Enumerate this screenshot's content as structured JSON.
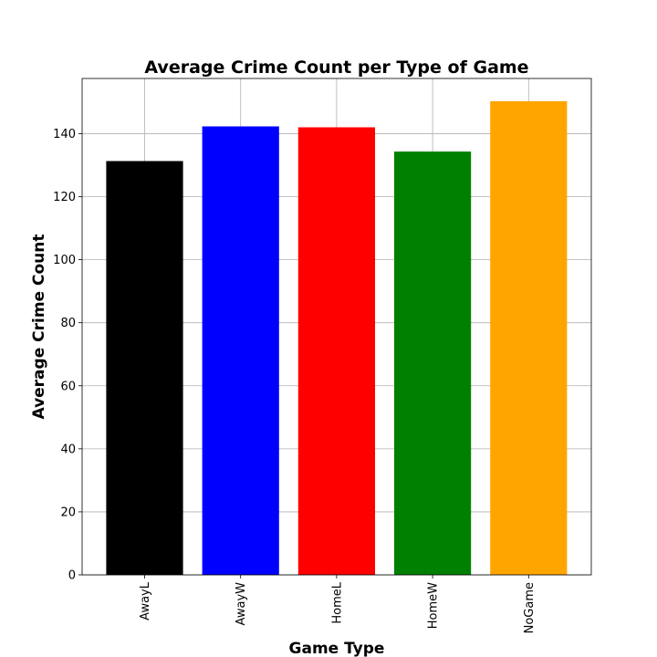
{
  "chart_data": {
    "type": "bar",
    "title": "Average Crime Count per Type of Game",
    "xlabel": "Game Type",
    "ylabel": "Average Crime Count",
    "categories": [
      "AwayL",
      "AwayW",
      "HomeL",
      "HomeW",
      "NoGame"
    ],
    "values": [
      131.3,
      142.3,
      142.0,
      134.3,
      150.3
    ],
    "colors": [
      "#000000",
      "#0000ff",
      "#ff0000",
      "#008000",
      "#ffa500"
    ],
    "ylim": [
      0,
      157.5
    ],
    "yticks": [
      0,
      20,
      40,
      60,
      80,
      100,
      120,
      140
    ],
    "grid": true,
    "legend": "none"
  }
}
